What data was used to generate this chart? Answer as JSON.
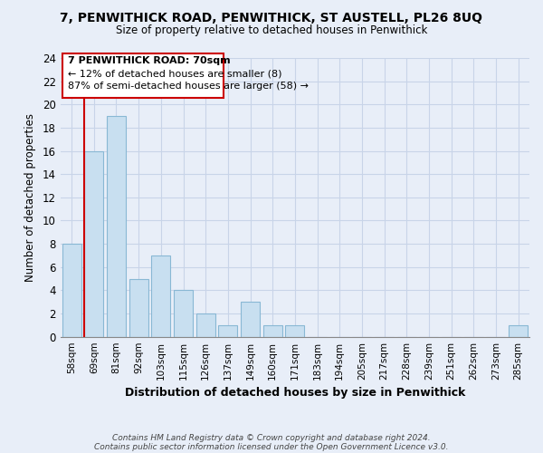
{
  "title": "7, PENWITHICK ROAD, PENWITHICK, ST AUSTELL, PL26 8UQ",
  "subtitle": "Size of property relative to detached houses in Penwithick",
  "xlabel": "Distribution of detached houses by size in Penwithick",
  "ylabel": "Number of detached properties",
  "bar_labels": [
    "58sqm",
    "69sqm",
    "81sqm",
    "92sqm",
    "103sqm",
    "115sqm",
    "126sqm",
    "137sqm",
    "149sqm",
    "160sqm",
    "171sqm",
    "183sqm",
    "194sqm",
    "205sqm",
    "217sqm",
    "228sqm",
    "239sqm",
    "251sqm",
    "262sqm",
    "273sqm",
    "285sqm"
  ],
  "bar_values": [
    8,
    16,
    19,
    5,
    7,
    4,
    2,
    1,
    3,
    1,
    1,
    0,
    0,
    0,
    0,
    0,
    0,
    0,
    0,
    0,
    1
  ],
  "bar_color": "#c8dff0",
  "bar_edge_color": "#89b8d4",
  "subject_line_color": "#cc0000",
  "ylim": [
    0,
    24
  ],
  "yticks": [
    0,
    2,
    4,
    6,
    8,
    10,
    12,
    14,
    16,
    18,
    20,
    22,
    24
  ],
  "annotation_title": "7 PENWITHICK ROAD: 70sqm",
  "annotation_line1": "← 12% of detached houses are smaller (8)",
  "annotation_line2": "87% of semi-detached houses are larger (58) →",
  "annotation_box_color": "#ffffff",
  "annotation_box_edge": "#cc0000",
  "footer1": "Contains HM Land Registry data © Crown copyright and database right 2024.",
  "footer2": "Contains public sector information licensed under the Open Government Licence v3.0.",
  "grid_color": "#c8d4e8",
  "background_color": "#e8eef8"
}
